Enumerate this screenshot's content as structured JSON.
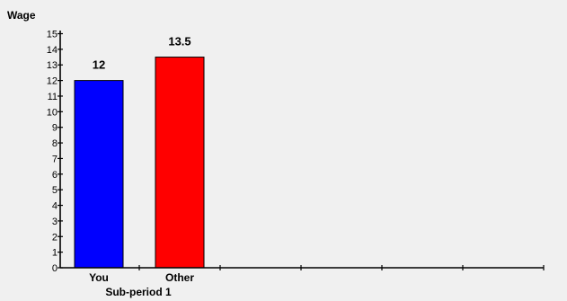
{
  "chart_data": {
    "type": "bar",
    "ylabel": "Wage",
    "xlabel": "Sub-period 1",
    "ylim": [
      0,
      15
    ],
    "yticks": [
      0,
      1,
      2,
      3,
      4,
      5,
      6,
      7,
      8,
      9,
      10,
      11,
      12,
      13,
      14,
      15
    ],
    "categories": [
      "You",
      "Other"
    ],
    "values": [
      12,
      13.5
    ],
    "data_labels": [
      "12",
      "13.5"
    ],
    "colors": [
      "#0000ff",
      "#ff0000"
    ],
    "grid": false,
    "legend": "none"
  }
}
